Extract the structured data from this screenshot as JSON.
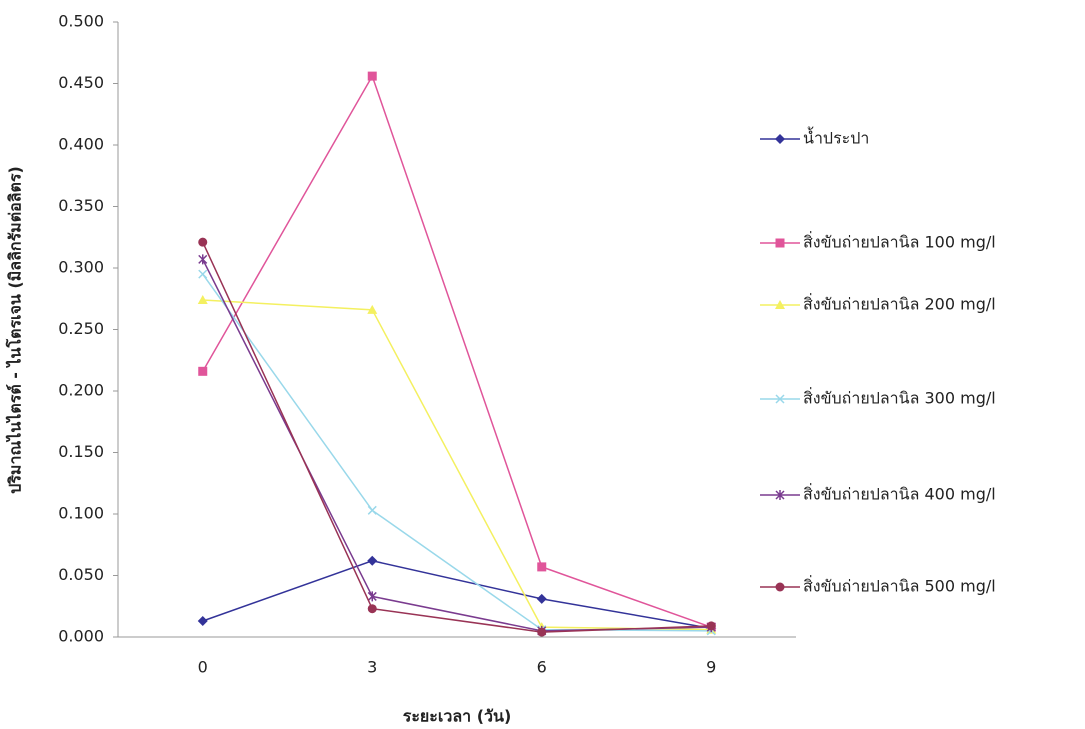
{
  "chart_data": {
    "type": "line",
    "y_label": "ปริมาณไนไตรต์ - ไนโตรเจน (มิลลิกรัมต่อลิตร)",
    "x_label": "ระยะเวลา (วัน)",
    "categories": [
      "0",
      "3",
      "6",
      "9"
    ],
    "ylim": [
      0,
      0.5
    ],
    "yticks": [
      {
        "value": 0,
        "label": "0.000"
      },
      {
        "value": 0.05,
        "label": "0.050"
      },
      {
        "value": 0.1,
        "label": "0.100"
      },
      {
        "value": 0.15,
        "label": "0.150"
      },
      {
        "value": 0.2,
        "label": "0.200"
      },
      {
        "value": 0.25,
        "label": "0.250"
      },
      {
        "value": 0.3,
        "label": "0.300"
      },
      {
        "value": 0.35,
        "label": "0.350"
      },
      {
        "value": 0.4,
        "label": "0.400"
      },
      {
        "value": 0.45,
        "label": "0.450"
      },
      {
        "value": 0.5,
        "label": "0.500"
      }
    ],
    "legend": "right",
    "series": [
      {
        "name": "น้ำประปา",
        "color": "#333399",
        "marker": "diamond",
        "values": [
          0.013,
          0.062,
          0.031,
          0.007
        ]
      },
      {
        "name": "สิ่งขับถ่ายปลานิล 100 mg/l",
        "color": "#e0559a",
        "marker": "square",
        "values": [
          0.216,
          0.456,
          0.057,
          0.008
        ]
      },
      {
        "name": "สิ่งขับถ่ายปลานิล  200 mg/l",
        "color": "#f4f060",
        "marker": "triangle",
        "values": [
          0.274,
          0.266,
          0.008,
          0.006
        ]
      },
      {
        "name": "สิ่งขับถ่ายปลานิล  300 mg/l",
        "color": "#99d8ea",
        "marker": "x",
        "values": [
          0.295,
          0.103,
          0.006,
          0.005
        ]
      },
      {
        "name": "สิ่งขับถ่ายปลานิล  400 mg/l",
        "color": "#7a3b8f",
        "marker": "star",
        "values": [
          0.307,
          0.033,
          0.005,
          0.008
        ]
      },
      {
        "name": "สิ่งขับถ่ายปลานิล  500 mg/l",
        "color": "#993355",
        "marker": "circle",
        "values": [
          0.321,
          0.023,
          0.004,
          0.009
        ]
      }
    ]
  }
}
